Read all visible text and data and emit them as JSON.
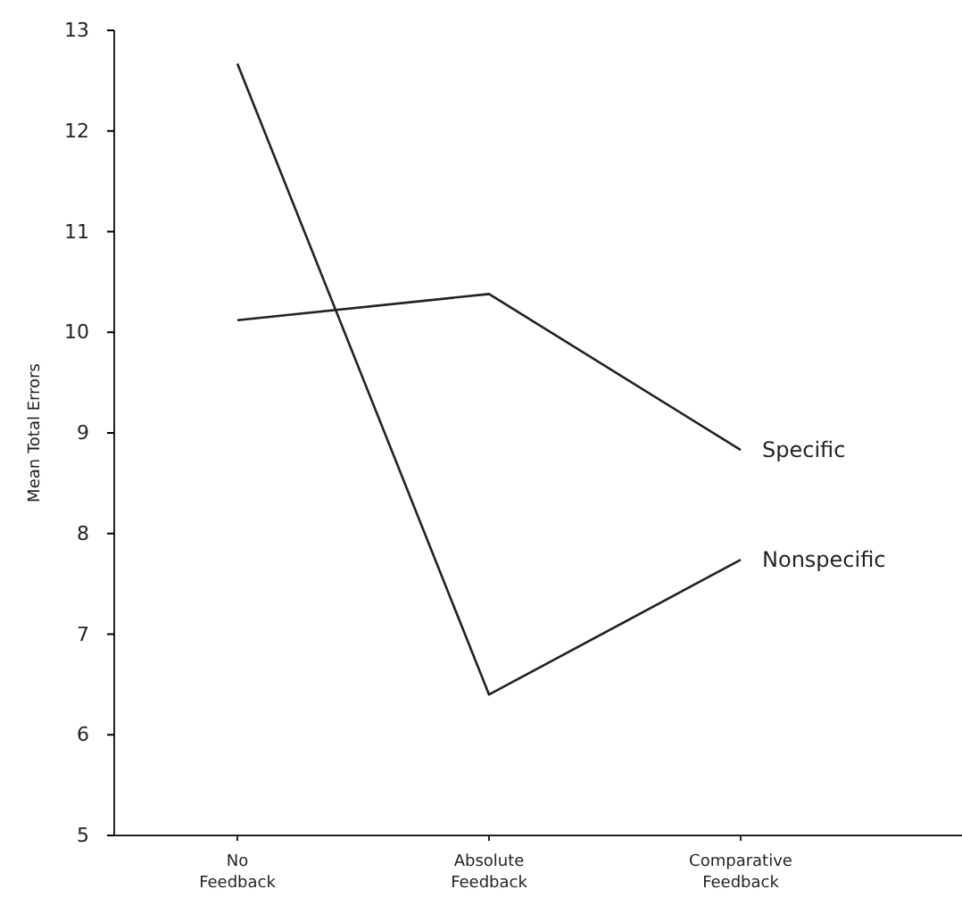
{
  "chart_data": {
    "type": "line",
    "ylabel": "Mean Total Errors",
    "categories": [
      "No\nFeedback",
      "Absolute\nFeedback",
      "Comparative\nFeedback"
    ],
    "series": [
      {
        "name": "Specific",
        "color": "#222222",
        "values": [
          10.12,
          10.38,
          8.83
        ]
      },
      {
        "name": "Nonspecific",
        "color": "#222222",
        "values": [
          12.67,
          6.4,
          7.74
        ]
      }
    ],
    "ylim": [
      5,
      13
    ],
    "yticks": [
      5,
      6,
      7,
      8,
      9,
      10,
      11,
      12,
      13
    ],
    "grid": false,
    "marker": "none",
    "line_style": "solid"
  }
}
